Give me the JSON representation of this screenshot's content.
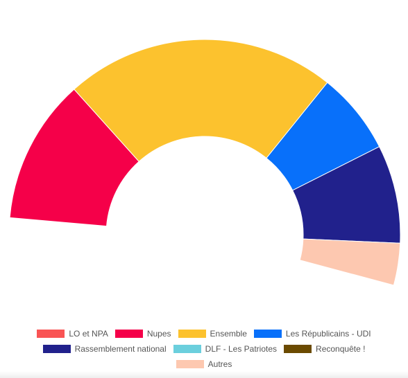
{
  "chart_data": {
    "type": "pie",
    "subtype": "half-doughnut",
    "legend_position": "bottom",
    "categories": [
      "LO et NPA",
      "Nupes",
      "Ensemble",
      "Les Républicains - UDI",
      "Rassemblement national",
      "DLF - Les Patriotes",
      "Reconquête !",
      "Autres"
    ],
    "values": [
      0,
      131,
      245,
      74,
      89,
      0,
      0,
      38
    ],
    "colors": [
      "#f95454",
      "#f50049",
      "#fcc22e",
      "#0870fa",
      "#21218c",
      "#6bcfdd",
      "#6b4a00",
      "#fdc8b0"
    ]
  }
}
